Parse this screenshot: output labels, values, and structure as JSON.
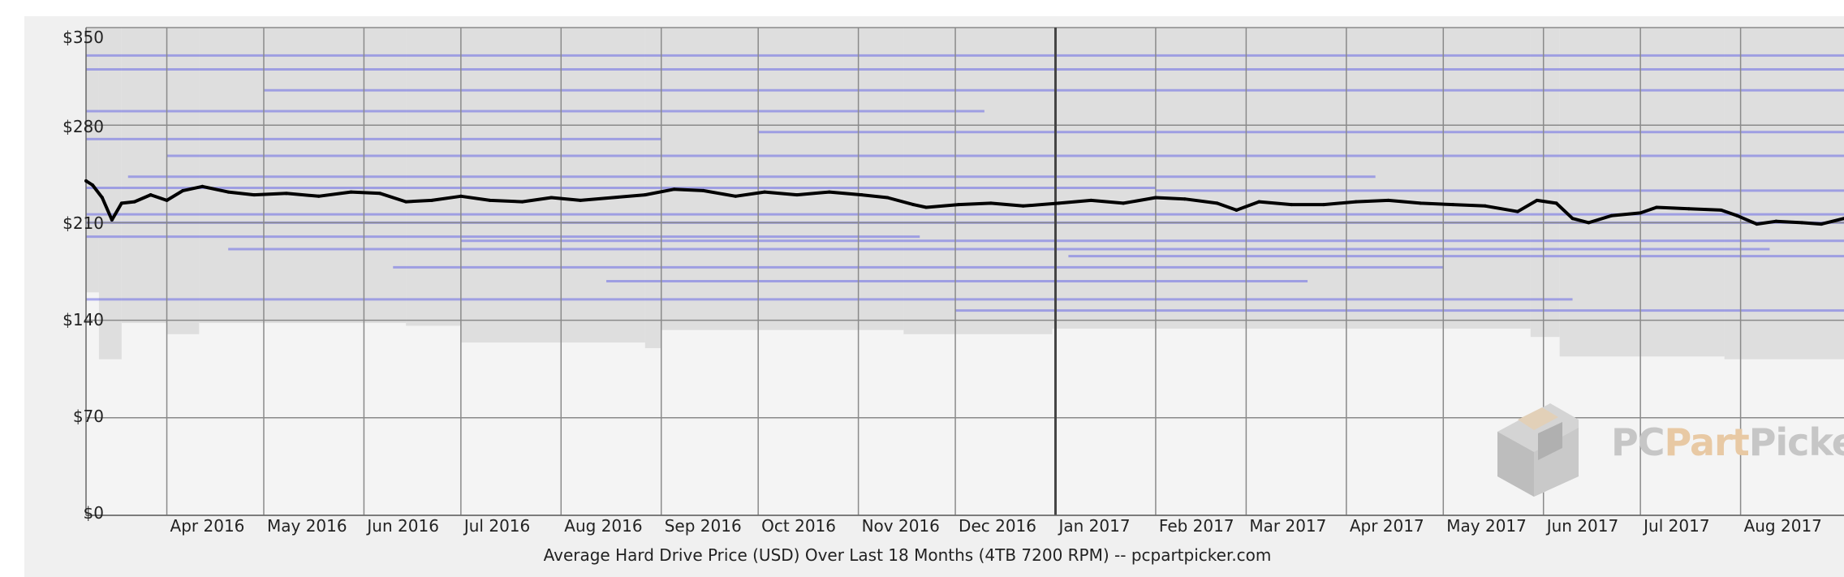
{
  "chart_data": {
    "type": "line",
    "xlabel": "Average Hard Drive Price (USD) Over Last 18 Months (4TB 7200 RPM) -- pcpartpicker.com",
    "y_ticks": [
      "$0",
      "$70",
      "$140",
      "$210",
      "$280",
      "$350"
    ],
    "y_tick_values": [
      0,
      70,
      140,
      210,
      280,
      350
    ],
    "ylim": [
      0,
      350
    ],
    "x_ticks": [
      "Apr 2016",
      "May 2016",
      "Jun 2016",
      "Jul 2016",
      "Aug 2016",
      "Sep 2016",
      "Oct 2016",
      "Nov 2016",
      "Dec 2016",
      "Jan 2017",
      "Feb 2017",
      "Mar 2017",
      "Apr 2017",
      "May 2017",
      "Jun 2017",
      "Jul 2017",
      "Aug 2017"
    ],
    "xlim": [
      "2016-03-07",
      "2017-09-02"
    ],
    "year_divider": "2017-01-01",
    "grid": true,
    "series": [
      {
        "color": "#000000",
        "points": [
          [
            "2016-03-07",
            240
          ],
          [
            "2016-03-09",
            237
          ],
          [
            "2016-03-12",
            228
          ],
          [
            "2016-03-15",
            212
          ],
          [
            "2016-03-18",
            224
          ],
          [
            "2016-03-22",
            225
          ],
          [
            "2016-03-27",
            230
          ],
          [
            "2016-04-01",
            226
          ],
          [
            "2016-04-06",
            233
          ],
          [
            "2016-04-12",
            236
          ],
          [
            "2016-04-20",
            232
          ],
          [
            "2016-04-28",
            230
          ],
          [
            "2016-05-08",
            231
          ],
          [
            "2016-05-18",
            229
          ],
          [
            "2016-05-28",
            232
          ],
          [
            "2016-06-06",
            231
          ],
          [
            "2016-06-14",
            225
          ],
          [
            "2016-06-22",
            226
          ],
          [
            "2016-07-01",
            229
          ],
          [
            "2016-07-10",
            226
          ],
          [
            "2016-07-20",
            225
          ],
          [
            "2016-07-29",
            228
          ],
          [
            "2016-08-07",
            226
          ],
          [
            "2016-08-17",
            228
          ],
          [
            "2016-08-27",
            230
          ],
          [
            "2016-09-05",
            234
          ],
          [
            "2016-09-14",
            233
          ],
          [
            "2016-09-24",
            229
          ],
          [
            "2016-10-03",
            232
          ],
          [
            "2016-10-13",
            230
          ],
          [
            "2016-10-23",
            232
          ],
          [
            "2016-11-02",
            230
          ],
          [
            "2016-11-10",
            228
          ],
          [
            "2016-11-18",
            223
          ],
          [
            "2016-11-22",
            221
          ],
          [
            "2016-12-02",
            223
          ],
          [
            "2016-12-12",
            224
          ],
          [
            "2016-12-22",
            222
          ],
          [
            "2017-01-02",
            224
          ],
          [
            "2017-01-12",
            226
          ],
          [
            "2017-01-22",
            224
          ],
          [
            "2017-02-01",
            228
          ],
          [
            "2017-02-10",
            227
          ],
          [
            "2017-02-20",
            224
          ],
          [
            "2017-02-26",
            219
          ],
          [
            "2017-03-05",
            225
          ],
          [
            "2017-03-15",
            223
          ],
          [
            "2017-03-25",
            223
          ],
          [
            "2017-04-04",
            225
          ],
          [
            "2017-04-14",
            226
          ],
          [
            "2017-04-24",
            224
          ],
          [
            "2017-05-04",
            223
          ],
          [
            "2017-05-14",
            222
          ],
          [
            "2017-05-24",
            218
          ],
          [
            "2017-05-30",
            226
          ],
          [
            "2017-06-05",
            224
          ],
          [
            "2017-06-10",
            213
          ],
          [
            "2017-06-15",
            210
          ],
          [
            "2017-06-22",
            215
          ],
          [
            "2017-07-01",
            217
          ],
          [
            "2017-07-06",
            221
          ],
          [
            "2017-07-16",
            220
          ],
          [
            "2017-07-26",
            219
          ],
          [
            "2017-07-31",
            215
          ],
          [
            "2017-08-06",
            209
          ],
          [
            "2017-08-12",
            211
          ],
          [
            "2017-08-20",
            210
          ],
          [
            "2017-08-26",
            209
          ],
          [
            "2017-09-02",
            213
          ]
        ]
      }
    ],
    "price_band": {
      "fill": "#dedede",
      "segments": [
        {
          "start": "2016-03-07",
          "end": "2016-03-11",
          "low": 160,
          "high": 350
        },
        {
          "start": "2016-03-11",
          "end": "2016-03-18",
          "low": 112,
          "high": 350
        },
        {
          "start": "2016-03-18",
          "end": "2016-04-01",
          "low": 138,
          "high": 350
        },
        {
          "start": "2016-04-01",
          "end": "2016-04-11",
          "low": 130,
          "high": 350
        },
        {
          "start": "2016-04-11",
          "end": "2016-06-14",
          "low": 138,
          "high": 350
        },
        {
          "start": "2016-06-14",
          "end": "2016-07-01",
          "low": 136,
          "high": 350
        },
        {
          "start": "2016-07-01",
          "end": "2016-08-27",
          "low": 124,
          "high": 350
        },
        {
          "start": "2016-08-27",
          "end": "2016-09-01",
          "low": 120,
          "high": 350
        },
        {
          "start": "2016-09-01",
          "end": "2016-11-15",
          "low": 133,
          "high": 350
        },
        {
          "start": "2016-11-15",
          "end": "2016-12-31",
          "low": 130,
          "high": 350
        },
        {
          "start": "2016-12-31",
          "end": "2017-05-28",
          "low": 134,
          "high": 350
        },
        {
          "start": "2017-05-28",
          "end": "2017-06-06",
          "low": 128,
          "high": 350
        },
        {
          "start": "2017-06-06",
          "end": "2017-07-27",
          "low": 114,
          "high": 350
        },
        {
          "start": "2017-07-27",
          "end": "2017-09-02",
          "low": 112,
          "high": 350
        }
      ],
      "listings": [
        {
          "start": "2016-03-07",
          "end": "2017-06-10",
          "price": 155
        },
        {
          "start": "2016-03-07",
          "end": "2017-09-02",
          "price": 210
        },
        {
          "start": "2016-03-07",
          "end": "2017-09-02",
          "price": 216
        },
        {
          "start": "2016-03-07",
          "end": "2016-11-20",
          "price": 200
        },
        {
          "start": "2016-03-20",
          "end": "2017-04-10",
          "price": 243
        },
        {
          "start": "2016-04-01",
          "end": "2017-09-02",
          "price": 258
        },
        {
          "start": "2016-04-20",
          "end": "2017-08-10",
          "price": 191
        },
        {
          "start": "2016-03-07",
          "end": "2016-12-10",
          "price": 290
        },
        {
          "start": "2016-05-01",
          "end": "2017-09-02",
          "price": 305
        },
        {
          "start": "2016-03-07",
          "end": "2017-09-02",
          "price": 330
        },
        {
          "start": "2016-06-10",
          "end": "2017-05-01",
          "price": 178
        },
        {
          "start": "2016-08-15",
          "end": "2017-03-20",
          "price": 168
        },
        {
          "start": "2016-12-01",
          "end": "2017-09-02",
          "price": 147
        },
        {
          "start": "2017-01-05",
          "end": "2017-09-02",
          "price": 186
        },
        {
          "start": "2016-03-07",
          "end": "2016-09-01",
          "price": 270
        },
        {
          "start": "2016-10-01",
          "end": "2017-09-02",
          "price": 275
        },
        {
          "start": "2016-03-07",
          "end": "2017-02-01",
          "price": 235
        },
        {
          "start": "2017-02-01",
          "end": "2017-09-02",
          "price": 233
        },
        {
          "start": "2016-07-01",
          "end": "2017-09-02",
          "price": 197
        },
        {
          "start": "2016-03-07",
          "end": "2017-09-02",
          "price": 320
        }
      ]
    }
  },
  "watermark": {
    "part1": "PC",
    "part2": "Part",
    "part3": "Picker"
  }
}
